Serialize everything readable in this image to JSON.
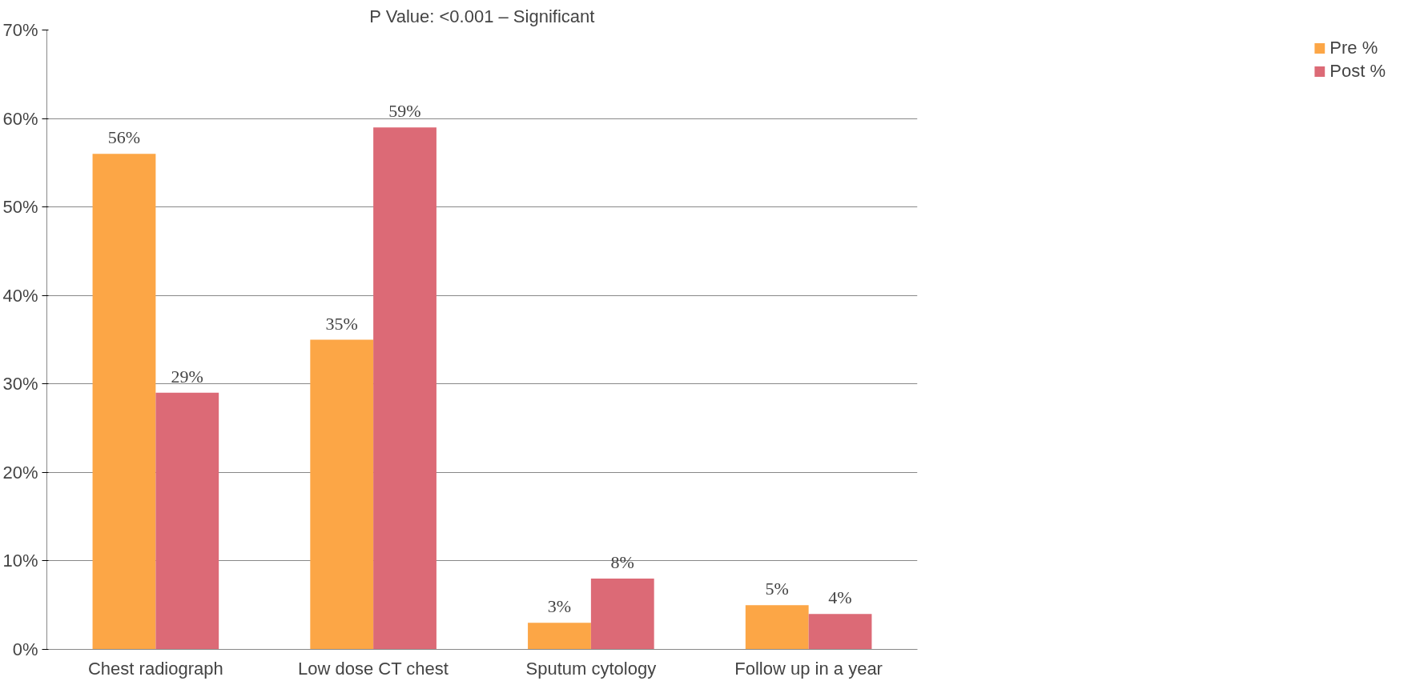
{
  "chart_data": {
    "type": "bar",
    "annotations": [
      "P Value: <0.001 – Significant"
    ],
    "categories": [
      "Chest radiograph",
      "Low dose CT chest",
      "Sputum cytology",
      "Follow up in a year"
    ],
    "series": [
      {
        "name": "Pre %",
        "color": "#fca646",
        "values": [
          56,
          35,
          3,
          5
        ],
        "value_labels": [
          "56%",
          "35%",
          "3%",
          "5%"
        ]
      },
      {
        "name": "Post %",
        "color": "#dc6a76",
        "values": [
          29,
          59,
          8,
          4
        ],
        "value_labels": [
          "29%",
          "59%",
          "8%",
          "4%"
        ]
      }
    ],
    "ylim": [
      0,
      70
    ],
    "yticks": [
      {
        "value": 0,
        "label": "0%"
      },
      {
        "value": 10,
        "label": "10%"
      },
      {
        "value": 20,
        "label": "20%"
      },
      {
        "value": 30,
        "label": "30%"
      },
      {
        "value": 40,
        "label": "40%"
      },
      {
        "value": 50,
        "label": "50%"
      },
      {
        "value": 60,
        "label": "60%"
      },
      {
        "value": 70,
        "label": "70%"
      }
    ],
    "grid": "y",
    "legend": "right"
  }
}
